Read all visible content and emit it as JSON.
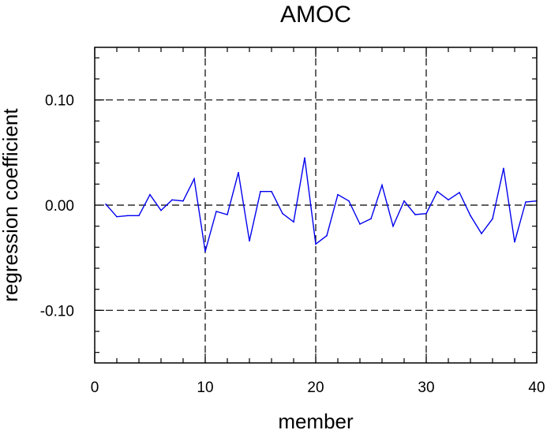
{
  "chart_data": {
    "type": "line",
    "title": "AMOC",
    "xlabel": "member",
    "ylabel": "regression coefficient",
    "xlim": [
      0,
      40
    ],
    "ylim": [
      -0.15,
      0.15
    ],
    "x_ticks": [
      0,
      10,
      20,
      30,
      40
    ],
    "x_tick_labels": [
      "0",
      "10",
      "20",
      "30",
      "40"
    ],
    "y_ticks": [
      -0.1,
      0.0,
      0.1
    ],
    "y_tick_labels": [
      "-0.10",
      "0.00",
      "0.10"
    ],
    "grid": true,
    "x": [
      1,
      2,
      3,
      4,
      5,
      6,
      7,
      8,
      9,
      10,
      11,
      12,
      13,
      14,
      15,
      16,
      17,
      18,
      19,
      20,
      21,
      22,
      23,
      24,
      25,
      26,
      27,
      28,
      29,
      30,
      31,
      32,
      33,
      34,
      35,
      36,
      37,
      38,
      39,
      40
    ],
    "series": [
      {
        "color": "#0000ee",
        "values": [
          0.001,
          -0.011,
          -0.01,
          -0.01,
          0.01,
          -0.005,
          0.005,
          0.004,
          0.025,
          -0.044,
          -0.006,
          -0.009,
          0.031,
          -0.034,
          0.013,
          0.013,
          -0.008,
          -0.016,
          0.045,
          -0.037,
          -0.029,
          0.01,
          0.004,
          -0.018,
          -0.013,
          0.019,
          -0.02,
          0.004,
          -0.009,
          -0.008,
          0.013,
          0.005,
          0.012,
          -0.01,
          -0.027,
          -0.013,
          0.035,
          -0.035,
          0.003,
          0.004
        ]
      }
    ]
  }
}
